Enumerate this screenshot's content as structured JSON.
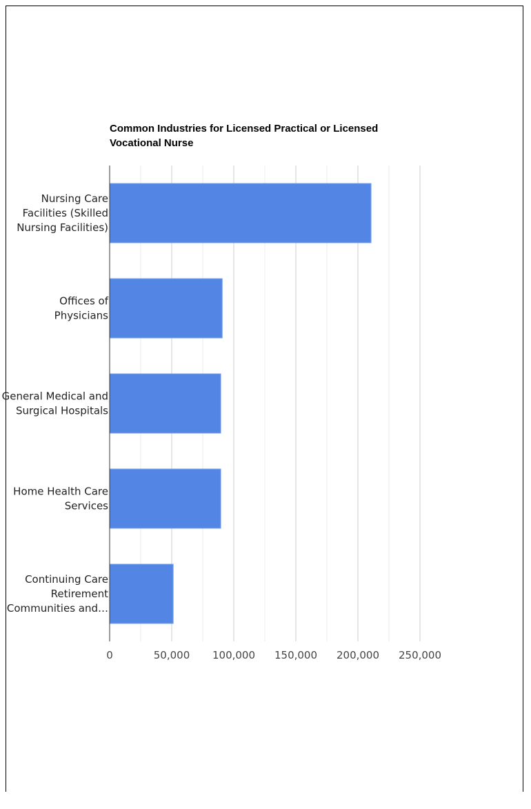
{
  "chart_data": {
    "type": "bar",
    "orientation": "horizontal",
    "title": "Common Industries for Licensed Practical or Licensed Vocational Nurse",
    "categories": [
      [
        "Nursing Care",
        "Facilities (Skilled",
        "Nursing Facilities)"
      ],
      [
        "Offices of",
        "Physicians"
      ],
      [
        "General Medical and",
        "Surgical Hospitals"
      ],
      [
        "Home Health Care",
        "Services"
      ],
      [
        "Continuing Care",
        "Retirement",
        "Communities and…"
      ]
    ],
    "values": [
      210600,
      90700,
      89500,
      89500,
      51200
    ],
    "xlim": [
      0,
      250000
    ],
    "xticks": [
      0,
      50000,
      100000,
      150000,
      200000,
      250000
    ],
    "xtick_labels": [
      "0",
      "50,000",
      "100,000",
      "150,000",
      "200,000",
      "250,000"
    ],
    "minor_grid_step": 25000,
    "grid": true,
    "bar_color": "#5386e4",
    "xlabel": "",
    "ylabel": ""
  }
}
